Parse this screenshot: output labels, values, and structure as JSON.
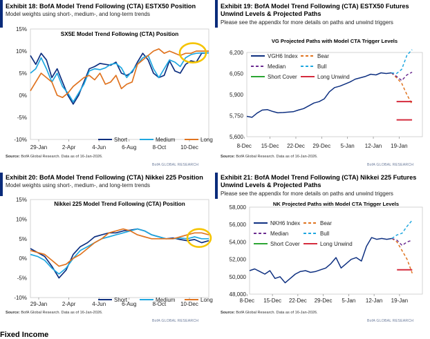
{
  "panels": [
    {
      "id": "p18",
      "title": "Exhibit 18: BofA Model Trend Following (CTA) ESTX50 Position",
      "subtitle": "Model weights using short-, medium-, and long-term trends",
      "source_label": "Source:",
      "source_text": "BofA Global Research.  Data as of 16-Jan-2026.",
      "brand": "BofA GLOBAL RESEARCH"
    },
    {
      "id": "p19",
      "title": "Exhibit 19: BofA Model Trend Following (CTA) ESTX50 Futures Unwind Levels & Projected Paths",
      "subtitle": "Please see the appendix for more details on paths and unwind triggers",
      "source_label": "Source:",
      "source_text": "BofA Global Research.  Data as of 16-Jan-2026.",
      "brand": "BofA GLOBAL RESEARCH"
    },
    {
      "id": "p20",
      "title": "Exhibit 20: BofA Model Trend Following (CTA) Nikkei 225 Position",
      "subtitle": "Model weights using short-, medium-, and long-term trends",
      "source_label": "Source:",
      "source_text": "BofA Global Research.  Data as of 16-Jan-2026.",
      "brand": "BofA GLOBAL RESEARCH"
    },
    {
      "id": "p21",
      "title": "Exhibit 21: BofA Model Trend Following (CTA) Nikkei 225 Futures Unwind Levels & Projected Paths",
      "subtitle": "Please see the appendix for more details on paths and unwind triggers",
      "source_label": "Source:",
      "source_text": "BofA Global Research.  Data as of 16-Jan-2026.",
      "brand": "BofA GLOBAL RESEARCH"
    }
  ],
  "footer_heading": "Fixed Income",
  "colors": {
    "short": "#0d2f80",
    "medium": "#1ea7e0",
    "long": "#e0731f",
    "index": "#0d2f80",
    "bear": "#e0731f",
    "bull": "#1ea7e0",
    "median": "#6b2c91",
    "short_cover": "#2aa532",
    "long_unwind": "#d42a3c",
    "highlight": "#f5c400",
    "accent_bar": "#0a2b7a"
  },
  "chart_data": [
    {
      "type": "line",
      "title": "SX5E Model Trend Following (CTA) Position",
      "x_ticks": [
        "29-Jan",
        "2-Apr",
        "4-Jun",
        "6-Aug",
        "8-Oct",
        "10-Dec"
      ],
      "y_ticks": [
        "15%",
        "10%",
        "5%",
        "0%",
        "-5%",
        "-10%"
      ],
      "ylim": [
        -10,
        15
      ],
      "unit": "%",
      "grid": false,
      "legend": "bottom-right",
      "annotation": "yellow circle highlighting latest values",
      "x": [
        0,
        3,
        6,
        9,
        12,
        15,
        18,
        21,
        24,
        27,
        30,
        33,
        36,
        39,
        42,
        45,
        48,
        51,
        54,
        57,
        60,
        63,
        66,
        69,
        72,
        75,
        78,
        81,
        84,
        87,
        90,
        93,
        96,
        100
      ],
      "series": [
        {
          "name": "Short",
          "values": [
            9,
            7,
            9.5,
            8,
            4,
            6,
            3,
            0,
            -2,
            0,
            3,
            6,
            6.5,
            7.2,
            7,
            6.8,
            7.5,
            5,
            4.5,
            5.2,
            7.5,
            9.5,
            8,
            5,
            4,
            4.5,
            7.8,
            5.5,
            5,
            7,
            7.8,
            7.5,
            9.5,
            9.6
          ]
        },
        {
          "name": "Medium",
          "values": [
            5,
            6,
            8.5,
            6,
            3,
            5,
            2,
            0.5,
            -1.5,
            0.5,
            2.5,
            5.5,
            6,
            5.8,
            6.2,
            7,
            7.2,
            6.2,
            4,
            5.5,
            7,
            8.5,
            9,
            6,
            4,
            6,
            8,
            7.5,
            6.5,
            8.5,
            9.2,
            9.5,
            9.6,
            9.6
          ]
        },
        {
          "name": "Long",
          "values": [
            1,
            3,
            5,
            4,
            3,
            0,
            -0.5,
            0.5,
            2,
            3,
            4,
            4.5,
            3.5,
            5,
            2.5,
            3,
            4.5,
            1.5,
            2.5,
            3,
            7,
            8,
            9,
            10,
            10.5,
            9.5,
            10,
            9.5,
            9,
            9.5,
            9.5,
            10,
            10,
            10
          ]
        }
      ]
    },
    {
      "type": "line",
      "title": "VG Projected Paths with Model CTA Trigger Levels",
      "x_ticks": [
        "8-Dec",
        "15-Dec",
        "22-Dec",
        "29-Dec",
        "5-Jan",
        "12-Jan",
        "19-Jan"
      ],
      "y_ticks": [
        "6,200",
        "6,050",
        "5,900",
        "5,750",
        "5,600"
      ],
      "ylim": [
        5600,
        6200
      ],
      "grid": false,
      "legend": "top-left",
      "series": [
        {
          "name": "VGH6 Index",
          "x": [
            0,
            1,
            2,
            3,
            4,
            5,
            6,
            7,
            8,
            9,
            10,
            11,
            12,
            13,
            14,
            15,
            16,
            17,
            18,
            19,
            20,
            21,
            22,
            23,
            24,
            25,
            26,
            27,
            28
          ],
          "values": [
            5745,
            5738,
            5768,
            5790,
            5793,
            5780,
            5770,
            5772,
            5775,
            5778,
            5790,
            5800,
            5820,
            5840,
            5850,
            5870,
            5920,
            5950,
            5960,
            5975,
            5990,
            6010,
            6020,
            6030,
            6045,
            6040,
            6055,
            6050,
            6055
          ]
        },
        {
          "name": "Bear",
          "x": [
            28,
            29,
            30,
            31,
            32
          ],
          "values": [
            6055,
            6020,
            5980,
            5900,
            5830
          ]
        },
        {
          "name": "Median",
          "x": [
            28,
            29,
            30,
            31,
            32
          ],
          "values": [
            6055,
            6030,
            6000,
            6040,
            6060
          ]
        },
        {
          "name": "Bull",
          "x": [
            28,
            29,
            30,
            31,
            32
          ],
          "values": [
            6055,
            6050,
            6080,
            6180,
            6220
          ]
        },
        {
          "name": "Short Cover",
          "x": [],
          "values": []
        },
        {
          "name": "Long Unwind",
          "x": [
            29,
            32
          ],
          "values": [
            5850,
            5850
          ],
          "x2": [
            29,
            32
          ],
          "values2": [
            5720,
            5720
          ]
        }
      ]
    },
    {
      "type": "line",
      "title": "Nikkei 225 Model Trend Following (CTA) Position",
      "x_ticks": [
        "29-Jan",
        "2-Apr",
        "4-Jun",
        "6-Aug",
        "8-Oct",
        "10-Dec"
      ],
      "y_ticks": [
        "15%",
        "10%",
        "5%",
        "0%",
        "-5%",
        "-10%"
      ],
      "ylim": [
        -10,
        15
      ],
      "unit": "%",
      "grid": false,
      "legend": "bottom-right",
      "annotation": "yellow circle highlighting latest values",
      "x": [
        0,
        4,
        8,
        12,
        16,
        20,
        24,
        28,
        32,
        36,
        40,
        44,
        48,
        52,
        56,
        60,
        64,
        68,
        72,
        76,
        80,
        84,
        88,
        92,
        96,
        100
      ],
      "series": [
        {
          "name": "Short",
          "values": [
            2.5,
            1.5,
            0.5,
            -2,
            -5,
            -3,
            1,
            3,
            4,
            5.5,
            6,
            6.5,
            6.5,
            7,
            7.2,
            7.5,
            7,
            6,
            5.5,
            5,
            5.2,
            4.8,
            4.5,
            4.8,
            4,
            4.5
          ]
        },
        {
          "name": "Medium",
          "values": [
            1,
            0.5,
            -0.5,
            -2.5,
            -4,
            -2.5,
            0,
            2,
            3,
            4,
            5,
            5.5,
            6,
            6.5,
            7,
            7.5,
            7,
            6,
            5.5,
            5,
            5,
            5.2,
            5,
            5.5,
            5,
            5
          ]
        },
        {
          "name": "Long",
          "values": [
            2,
            1.5,
            1,
            -0.5,
            -2,
            -1.5,
            0,
            1,
            2.5,
            4,
            5,
            6.5,
            7,
            7.5,
            7,
            6,
            5.5,
            5,
            5,
            5,
            5,
            5.5,
            6,
            6.5,
            6.5,
            6
          ]
        }
      ]
    },
    {
      "type": "line",
      "title": "NK Projected Paths with Model CTA Trigger Levels",
      "x_ticks": [
        "8-Dec",
        "15-Dec",
        "22-Dec",
        "29-Dec",
        "5-Jan",
        "12-Jan",
        "19-Jan"
      ],
      "y_ticks": [
        "58,000",
        "56,000",
        "54,000",
        "52,000",
        "50,000",
        "48,000"
      ],
      "ylim": [
        48000,
        58000
      ],
      "grid": false,
      "legend": "top-left",
      "series": [
        {
          "name": "NKH6 Index",
          "x": [
            0,
            1,
            2,
            3,
            4,
            5,
            6,
            7,
            8,
            9,
            10,
            11,
            12,
            13,
            14,
            15,
            16,
            17,
            18,
            19,
            20,
            21,
            22,
            23,
            24,
            25,
            26,
            27,
            28
          ],
          "values": [
            50700,
            50900,
            50600,
            50300,
            50700,
            49800,
            50000,
            49300,
            49800,
            50300,
            50600,
            50700,
            50500,
            50600,
            50800,
            51000,
            51500,
            52200,
            51000,
            51500,
            52000,
            52200,
            51800,
            53500,
            54500,
            54300,
            54400,
            54300,
            54400
          ]
        },
        {
          "name": "Bear",
          "x": [
            28,
            29,
            30,
            31,
            32
          ],
          "values": [
            54400,
            54000,
            53000,
            52000,
            50400
          ]
        },
        {
          "name": "Median",
          "x": [
            28,
            29,
            30,
            31,
            32
          ],
          "values": [
            54400,
            54200,
            53600,
            54000,
            54200
          ]
        },
        {
          "name": "Bull",
          "x": [
            28,
            29,
            30,
            31,
            32
          ],
          "values": [
            54400,
            54800,
            55000,
            55800,
            56500
          ]
        },
        {
          "name": "Short Cover",
          "x": [],
          "values": []
        },
        {
          "name": "Long Unwind",
          "x": [
            29,
            32
          ],
          "values": [
            50800,
            50800
          ]
        }
      ]
    }
  ]
}
